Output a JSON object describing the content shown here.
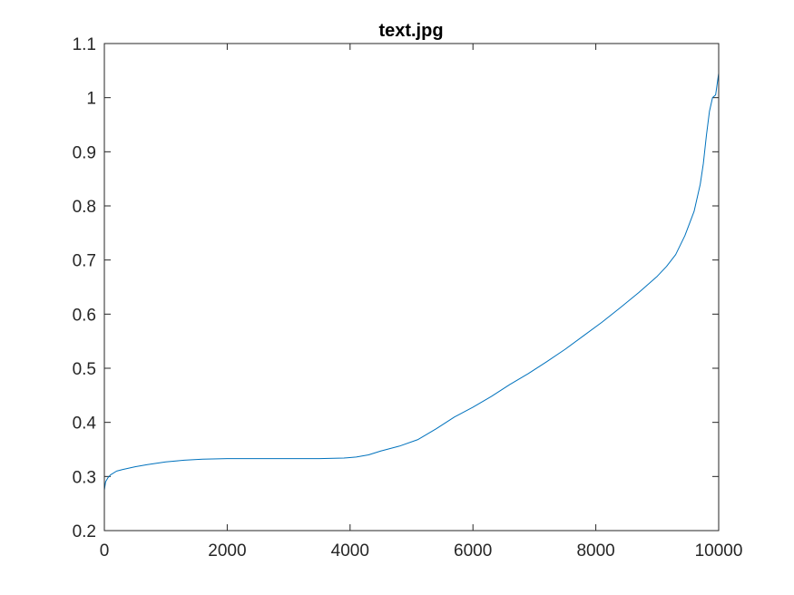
{
  "chart_data": {
    "type": "line",
    "title": "text.jpg",
    "xlabel": "",
    "ylabel": "",
    "xlim": [
      0,
      10000
    ],
    "ylim": [
      0.2,
      1.1
    ],
    "xticks": [
      0,
      2000,
      4000,
      6000,
      8000,
      10000
    ],
    "yticks": [
      0.2,
      0.3,
      0.4,
      0.5,
      0.6,
      0.7,
      0.8,
      0.9,
      1,
      1.1
    ],
    "xtick_labels": [
      "0",
      "2000",
      "4000",
      "6000",
      "8000",
      "10000"
    ],
    "ytick_labels": [
      "0.2",
      "0.3",
      "0.4",
      "0.5",
      "0.6",
      "0.7",
      "0.8",
      "0.9",
      "1",
      "1.1"
    ],
    "grid": false,
    "legend": "none",
    "line_color": "#0072BD",
    "series": [
      {
        "x": [
          0,
          20,
          60,
          100,
          200,
          300,
          500,
          700,
          1000,
          1300,
          1600,
          2000,
          2500,
          3000,
          3500,
          3900,
          4100,
          4300,
          4500,
          4800,
          5100,
          5400,
          5700,
          6000,
          6300,
          6600,
          6900,
          7200,
          7500,
          7800,
          8100,
          8400,
          8700,
          9000,
          9150,
          9300,
          9450,
          9600,
          9700,
          9750,
          9800,
          9850,
          9900,
          9950,
          10000
        ],
        "y": [
          0.275,
          0.29,
          0.298,
          0.303,
          0.31,
          0.313,
          0.318,
          0.322,
          0.327,
          0.33,
          0.332,
          0.333,
          0.333,
          0.333,
          0.333,
          0.334,
          0.336,
          0.34,
          0.347,
          0.356,
          0.368,
          0.388,
          0.41,
          0.428,
          0.448,
          0.47,
          0.49,
          0.512,
          0.535,
          0.56,
          0.585,
          0.612,
          0.64,
          0.67,
          0.688,
          0.71,
          0.745,
          0.79,
          0.84,
          0.878,
          0.93,
          0.975,
          1.0,
          1.005,
          1.045
        ]
      }
    ]
  }
}
